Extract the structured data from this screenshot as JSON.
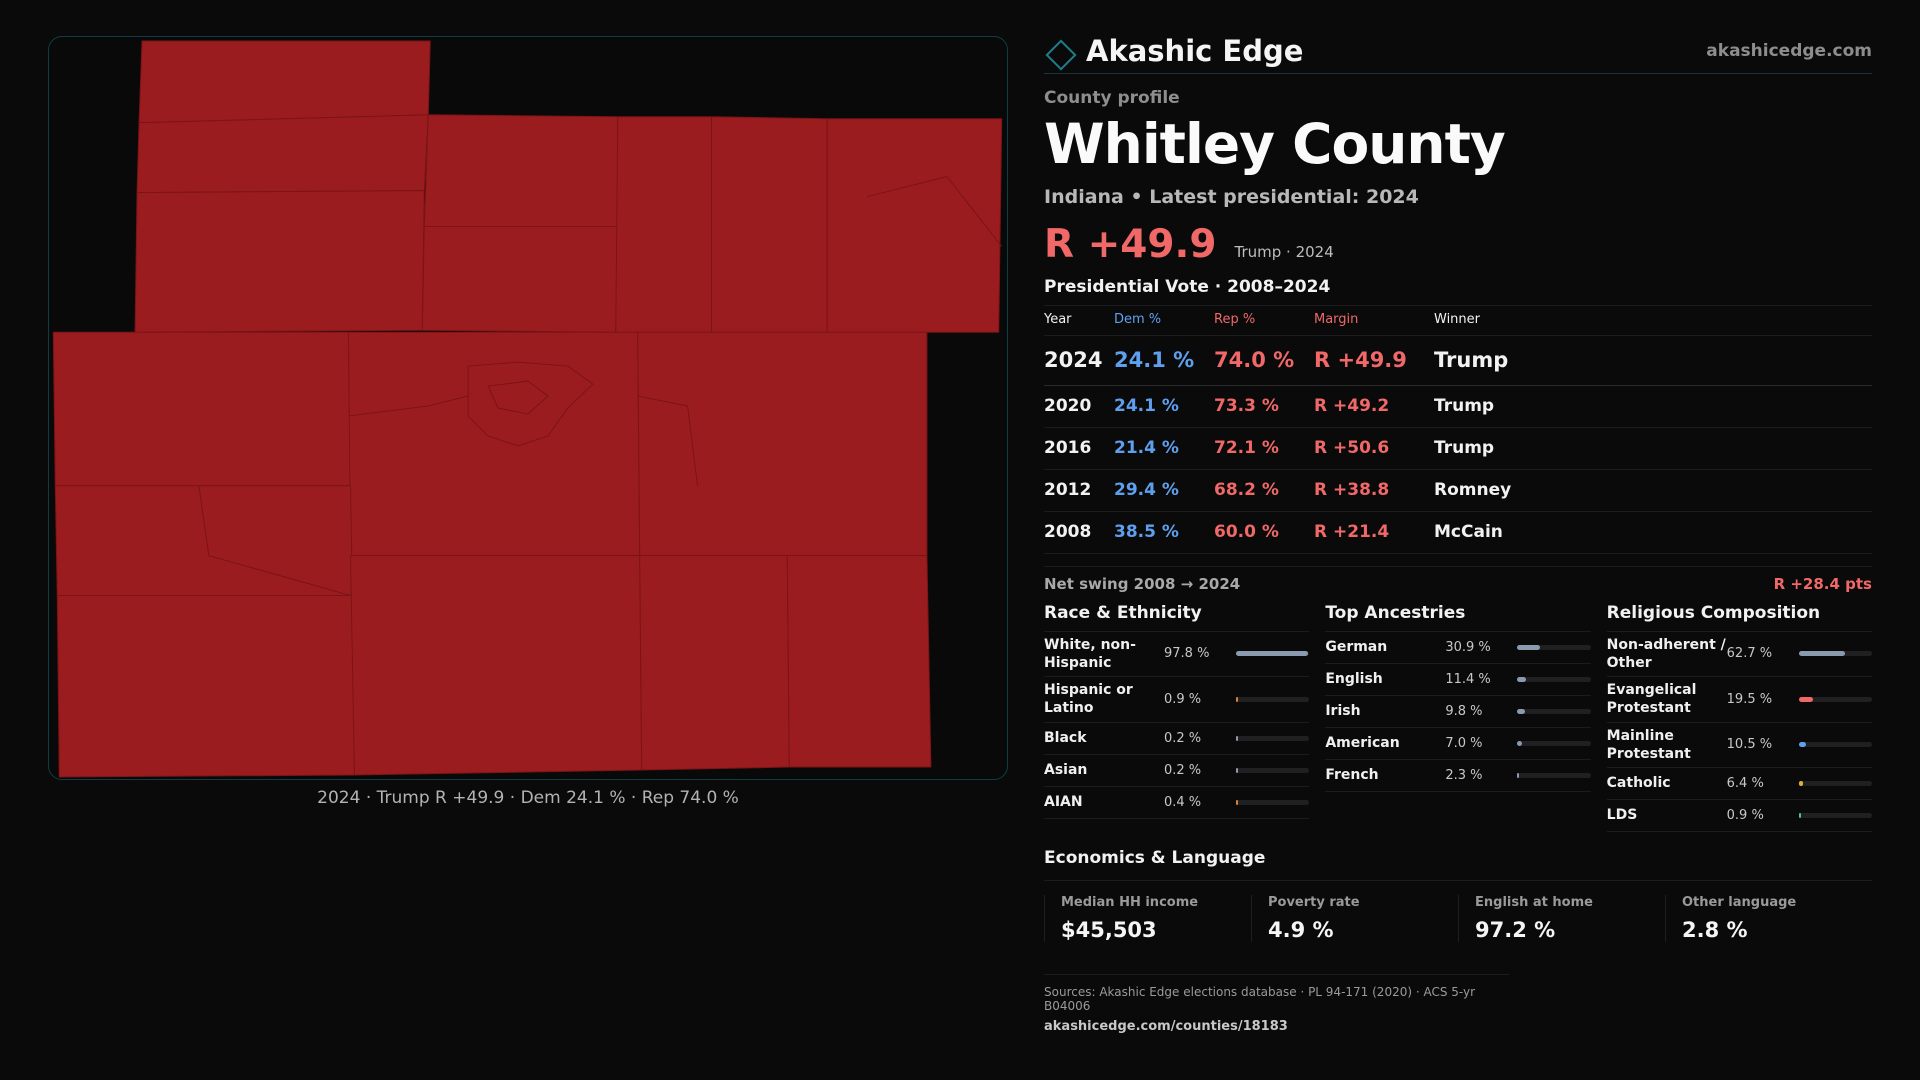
{
  "brand": {
    "name": "Akashic Edge",
    "url": "akashicedge.com",
    "accent_color": "#1e7f88"
  },
  "profile": {
    "eyebrow": "County profile",
    "county": "Whitley County",
    "subline": "Indiana • Latest presidential: 2024",
    "headline_margin": "R +49.9",
    "headline_note": "Trump · 2024"
  },
  "map": {
    "fill_color": "#9b1c1f",
    "caption": "2024 · Trump R +49.9 · Dem 24.1 % · Rep 74.0 %"
  },
  "vote": {
    "title": "Presidential Vote · 2008–2024",
    "headers": [
      "Year",
      "Dem %",
      "Rep %",
      "Margin",
      "Winner"
    ],
    "rows": [
      {
        "year": "2024",
        "dem": "24.1 %",
        "rep": "74.0 %",
        "margin": "R +49.9",
        "winner": "Trump"
      },
      {
        "year": "2020",
        "dem": "24.1 %",
        "rep": "73.3 %",
        "margin": "R +49.2",
        "winner": "Trump"
      },
      {
        "year": "2016",
        "dem": "21.4 %",
        "rep": "72.1 %",
        "margin": "R +50.6",
        "winner": "Trump"
      },
      {
        "year": "2012",
        "dem": "29.4 %",
        "rep": "68.2 %",
        "margin": "R +38.8",
        "winner": "Romney"
      },
      {
        "year": "2008",
        "dem": "38.5 %",
        "rep": "60.0 %",
        "margin": "R +21.4",
        "winner": "McCain"
      }
    ],
    "dem_color": "#5fa0ee",
    "rep_color": "#f06868"
  },
  "swing": {
    "label": "Net swing 2008 → 2024",
    "value": "R +28.4 pts"
  },
  "race": {
    "title": "Race & Ethnicity",
    "rows": [
      {
        "label": "White, non-Hispanic",
        "value": "97.8 %",
        "pct": 97.8,
        "color": "#8a9bb0"
      },
      {
        "label": "Hispanic or Latino",
        "value": "0.9 %",
        "pct": 0.9,
        "color": "#d9833a"
      },
      {
        "label": "Black",
        "value": "0.2 %",
        "pct": 0.2,
        "color": "#8a9bb0"
      },
      {
        "label": "Asian",
        "value": "0.2 %",
        "pct": 0.2,
        "color": "#8a9bb0"
      },
      {
        "label": "AIAN",
        "value": "0.4 %",
        "pct": 0.4,
        "color": "#d9833a"
      }
    ]
  },
  "ancestry": {
    "title": "Top Ancestries",
    "rows": [
      {
        "label": "German",
        "value": "30.9 %",
        "pct": 30.9,
        "color": "#8a9bb0"
      },
      {
        "label": "English",
        "value": "11.4 %",
        "pct": 11.4,
        "color": "#8a9bb0"
      },
      {
        "label": "Irish",
        "value": "9.8 %",
        "pct": 9.8,
        "color": "#8a9bb0"
      },
      {
        "label": "American",
        "value": "7.0 %",
        "pct": 7.0,
        "color": "#8a9bb0"
      },
      {
        "label": "French",
        "value": "2.3 %",
        "pct": 2.3,
        "color": "#8a9bb0"
      }
    ]
  },
  "religion": {
    "title": "Religious Composition",
    "rows": [
      {
        "label": "Non-adherent / Other",
        "value": "62.7 %",
        "pct": 62.7,
        "color": "#8a9bb0"
      },
      {
        "label": "Evangelical Protestant",
        "value": "19.5 %",
        "pct": 19.5,
        "color": "#f06868"
      },
      {
        "label": "Mainline Protestant",
        "value": "10.5 %",
        "pct": 10.5,
        "color": "#5fa0ee"
      },
      {
        "label": "Catholic",
        "value": "6.4 %",
        "pct": 6.4,
        "color": "#e0b030"
      },
      {
        "label": "LDS",
        "value": "0.9 %",
        "pct": 0.9,
        "color": "#4cc0a0"
      }
    ]
  },
  "economics": {
    "title": "Economics & Language",
    "cells": [
      {
        "label": "Median HH income",
        "value": "$45,503"
      },
      {
        "label": "Poverty rate",
        "value": "4.9 %"
      },
      {
        "label": "English at home",
        "value": "97.2 %"
      },
      {
        "label": "Other language",
        "value": "2.8 %"
      }
    ]
  },
  "sources": {
    "line": "Sources: Akashic Edge elections database · PL 94-171 (2020) · ACS 5-yr B04006",
    "url": "akashicedge.com/counties/18183"
  }
}
